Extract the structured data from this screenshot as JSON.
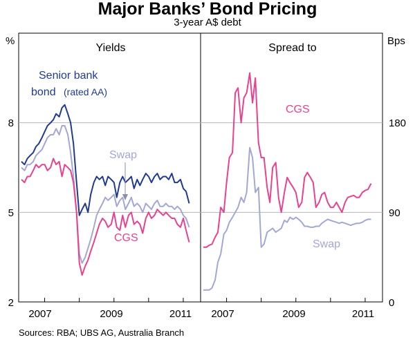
{
  "title": "Major Banks’ Bond Pricing",
  "subtitle": "3-year A$ debt",
  "source": "Sources: RBA; UBS AG, Australia Branch",
  "chart_data": [
    {
      "type": "line",
      "panel_title": "Yields",
      "ylabel": "%",
      "ylim": [
        2,
        11
      ],
      "yticks": [
        2,
        5,
        8
      ],
      "xticks": [
        "2007",
        "2009",
        "2011"
      ],
      "xlim": [
        2006.25,
        2011.5
      ],
      "grid": true,
      "series": [
        {
          "name": "Senior bank bond (rated AA)",
          "color": "#1f3a93",
          "x": [
            2006.33,
            2006.42,
            2006.5,
            2006.58,
            2006.67,
            2006.75,
            2006.83,
            2006.92,
            2007.0,
            2007.08,
            2007.17,
            2007.25,
            2007.33,
            2007.42,
            2007.5,
            2007.58,
            2007.67,
            2007.75,
            2007.83,
            2007.92,
            2008.0,
            2008.08,
            2008.17,
            2008.25,
            2008.33,
            2008.42,
            2008.5,
            2008.58,
            2008.67,
            2008.75,
            2008.83,
            2008.92,
            2009.0,
            2009.08,
            2009.17,
            2009.25,
            2009.33,
            2009.42,
            2009.5,
            2009.58,
            2009.67,
            2009.75,
            2009.83,
            2009.92,
            2010.0,
            2010.08,
            2010.17,
            2010.25,
            2010.33,
            2010.42,
            2010.5,
            2010.58,
            2010.67,
            2010.75,
            2010.83,
            2010.92,
            2011.0,
            2011.08,
            2011.17
          ],
          "values": [
            6.7,
            6.6,
            6.8,
            6.9,
            7.0,
            7.2,
            7.3,
            7.5,
            7.7,
            7.9,
            8.0,
            8.1,
            8.3,
            8.2,
            8.5,
            8.6,
            8.3,
            8.0,
            7.3,
            6.0,
            4.9,
            5.1,
            5.3,
            5.0,
            5.6,
            6.0,
            6.2,
            6.1,
            6.2,
            5.9,
            6.2,
            6.1,
            6.0,
            5.5,
            6.0,
            6.2,
            6.0,
            6.1,
            6.2,
            5.8,
            6.1,
            5.9,
            6.1,
            6.3,
            6.2,
            6.0,
            6.2,
            6.3,
            6.1,
            6.2,
            6.2,
            6.1,
            6.3,
            6.0,
            6.0,
            6.1,
            5.8,
            5.7,
            5.3
          ]
        },
        {
          "name": "Swap",
          "color": "#a2a8d3",
          "x": [
            2006.33,
            2006.42,
            2006.5,
            2006.58,
            2006.67,
            2006.75,
            2006.83,
            2006.92,
            2007.0,
            2007.08,
            2007.17,
            2007.25,
            2007.33,
            2007.42,
            2007.5,
            2007.58,
            2007.67,
            2007.75,
            2007.83,
            2007.92,
            2008.0,
            2008.08,
            2008.17,
            2008.25,
            2008.33,
            2008.42,
            2008.5,
            2008.58,
            2008.67,
            2008.75,
            2008.83,
            2008.92,
            2009.0,
            2009.08,
            2009.17,
            2009.25,
            2009.33,
            2009.42,
            2009.5,
            2009.58,
            2009.67,
            2009.75,
            2009.83,
            2009.92,
            2010.0,
            2010.08,
            2010.17,
            2010.25,
            2010.33,
            2010.42,
            2010.5,
            2010.58,
            2010.67,
            2010.75,
            2010.83,
            2010.92,
            2011.0,
            2011.08,
            2011.17
          ],
          "values": [
            6.5,
            6.4,
            6.6,
            6.6,
            6.7,
            6.9,
            7.0,
            7.1,
            7.3,
            7.5,
            7.6,
            7.6,
            7.8,
            7.6,
            7.9,
            7.9,
            7.6,
            7.0,
            6.2,
            5.0,
            3.6,
            3.3,
            3.5,
            3.8,
            4.1,
            4.5,
            4.9,
            5.1,
            5.3,
            5.5,
            5.4,
            5.5,
            5.6,
            5.2,
            5.4,
            5.5,
            5.1,
            5.3,
            5.5,
            5.2,
            5.3,
            5.2,
            5.0,
            5.3,
            5.2,
            5.1,
            5.3,
            5.4,
            5.2,
            5.2,
            5.3,
            5.2,
            5.2,
            5.1,
            5.2,
            5.1,
            4.9,
            4.8,
            4.5
          ]
        },
        {
          "name": "CGS",
          "color": "#e9418f",
          "x": [
            2006.33,
            2006.42,
            2006.5,
            2006.58,
            2006.67,
            2006.75,
            2006.83,
            2006.92,
            2007.0,
            2007.08,
            2007.17,
            2007.25,
            2007.33,
            2007.42,
            2007.5,
            2007.58,
            2007.67,
            2007.75,
            2007.83,
            2007.92,
            2008.0,
            2008.08,
            2008.17,
            2008.25,
            2008.33,
            2008.42,
            2008.5,
            2008.58,
            2008.67,
            2008.75,
            2008.83,
            2008.92,
            2009.0,
            2009.08,
            2009.17,
            2009.25,
            2009.33,
            2009.42,
            2009.5,
            2009.58,
            2009.67,
            2009.75,
            2009.83,
            2009.92,
            2010.0,
            2010.08,
            2010.17,
            2010.25,
            2010.33,
            2010.42,
            2010.5,
            2010.58,
            2010.67,
            2010.75,
            2010.83,
            2010.92,
            2011.0,
            2011.08,
            2011.17
          ],
          "values": [
            6.1,
            6.0,
            6.2,
            6.2,
            6.4,
            6.6,
            6.5,
            6.6,
            6.6,
            6.4,
            6.5,
            6.8,
            6.6,
            6.7,
            6.2,
            6.6,
            6.5,
            6.4,
            6.0,
            5.0,
            3.3,
            2.9,
            3.2,
            3.4,
            3.7,
            4.0,
            4.3,
            4.6,
            4.8,
            4.7,
            4.5,
            4.6,
            5.0,
            4.5,
            4.4,
            4.9,
            4.5,
            4.9,
            5.0,
            4.6,
            4.7,
            4.6,
            4.3,
            4.8,
            5.0,
            4.8,
            4.9,
            5.1,
            5.0,
            4.9,
            5.0,
            4.9,
            4.8,
            4.8,
            4.6,
            4.5,
            4.8,
            4.4,
            4.0
          ]
        }
      ]
    },
    {
      "type": "line",
      "panel_title": "Spread to",
      "ylabel": "Bps",
      "ylim": [
        0,
        270
      ],
      "yticks": [
        0,
        90,
        180
      ],
      "xticks": [
        "2007",
        "2009",
        "2011"
      ],
      "xlim": [
        2006.25,
        2011.5
      ],
      "grid": true,
      "series": [
        {
          "name": "CGS",
          "color": "#e9418f",
          "x": [
            2006.33,
            2006.42,
            2006.5,
            2006.58,
            2006.67,
            2006.75,
            2006.83,
            2006.92,
            2007.0,
            2007.08,
            2007.17,
            2007.25,
            2007.33,
            2007.42,
            2007.5,
            2007.58,
            2007.67,
            2007.75,
            2007.83,
            2007.92,
            2008.0,
            2008.08,
            2008.17,
            2008.25,
            2008.33,
            2008.42,
            2008.5,
            2008.58,
            2008.67,
            2008.75,
            2008.83,
            2008.92,
            2009.0,
            2009.08,
            2009.17,
            2009.25,
            2009.33,
            2009.42,
            2009.5,
            2009.58,
            2009.67,
            2009.75,
            2009.83,
            2009.92,
            2010.0,
            2010.08,
            2010.17,
            2010.25,
            2010.33,
            2010.42,
            2010.5,
            2010.58,
            2010.67,
            2010.75,
            2010.83,
            2010.92,
            2011.0,
            2011.08,
            2011.17
          ],
          "values": [
            55,
            55,
            57,
            58,
            65,
            70,
            95,
            90,
            120,
            145,
            150,
            210,
            215,
            180,
            205,
            210,
            230,
            200,
            225,
            160,
            145,
            145,
            115,
            100,
            135,
            140,
            105,
            90,
            110,
            125,
            120,
            115,
            110,
            95,
            100,
            125,
            130,
            125,
            120,
            95,
            100,
            108,
            110,
            100,
            95,
            95,
            100,
            95,
            90,
            100,
            105,
            106,
            107,
            105,
            105,
            110,
            112,
            113,
            119
          ]
        },
        {
          "name": "Swap",
          "color": "#a2a8d3",
          "x": [
            2006.33,
            2006.42,
            2006.5,
            2006.58,
            2006.67,
            2006.75,
            2006.83,
            2006.92,
            2007.0,
            2007.08,
            2007.17,
            2007.25,
            2007.33,
            2007.42,
            2007.5,
            2007.58,
            2007.67,
            2007.75,
            2007.83,
            2007.92,
            2008.0,
            2008.08,
            2008.17,
            2008.25,
            2008.33,
            2008.42,
            2008.5,
            2008.58,
            2008.67,
            2008.75,
            2008.83,
            2008.92,
            2009.0,
            2009.08,
            2009.17,
            2009.25,
            2009.33,
            2009.42,
            2009.5,
            2009.58,
            2009.67,
            2009.75,
            2009.83,
            2009.92,
            2010.0,
            2010.08,
            2010.17,
            2010.25,
            2010.33,
            2010.42,
            2010.5,
            2010.58,
            2010.67,
            2010.75,
            2010.83,
            2010.92,
            2011.0,
            2011.08,
            2011.17
          ],
          "values": [
            12,
            12,
            12,
            14,
            22,
            40,
            48,
            68,
            72,
            80,
            85,
            90,
            95,
            105,
            100,
            110,
            155,
            145,
            110,
            115,
            55,
            58,
            70,
            72,
            74,
            70,
            72,
            74,
            82,
            80,
            85,
            83,
            85,
            83,
            80,
            76,
            76,
            75,
            75,
            76,
            76,
            79,
            81,
            83,
            82,
            81,
            80,
            79,
            80,
            79,
            78,
            77,
            78,
            79,
            79,
            80,
            82,
            83,
            83
          ]
        }
      ]
    }
  ],
  "annotations": {
    "senior_line1": "Senior bank",
    "senior_line2": "bond",
    "senior_rated": "(rated AA)",
    "swap_left": "Swap",
    "cgs_left": "CGS",
    "cgs_right": "CGS",
    "swap_right": "Swap"
  }
}
